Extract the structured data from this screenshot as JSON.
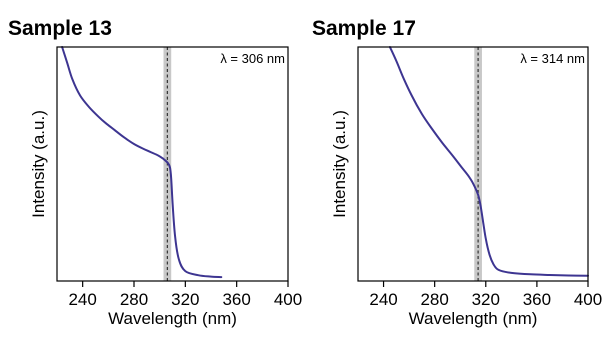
{
  "chart_data": [
    {
      "type": "line",
      "title": "Sample 13",
      "xlabel": "Wavelength (nm)",
      "ylabel": "Intensity (a.u.)",
      "xlim": [
        220,
        400
      ],
      "ylim": [
        0,
        1
      ],
      "xticks": [
        240,
        280,
        320,
        360,
        400
      ],
      "xtick_labels": [
        "240",
        "280",
        "320",
        "360",
        "400"
      ],
      "color": "#3d3591",
      "band_color": "#c8c8c8",
      "annotation": "λ = 306 nm",
      "marker_x": 306,
      "band": [
        303,
        309
      ],
      "x": [
        224,
        228,
        232,
        238,
        245,
        252,
        258,
        265,
        272,
        280,
        287,
        293,
        299,
        303,
        306,
        308,
        309,
        310,
        312,
        315,
        320,
        330,
        340,
        348
      ],
      "y": [
        1.0,
        0.93,
        0.86,
        0.79,
        0.74,
        0.7,
        0.67,
        0.64,
        0.61,
        0.58,
        0.56,
        0.545,
        0.53,
        0.515,
        0.5,
        0.48,
        0.43,
        0.33,
        0.18,
        0.08,
        0.03,
        0.012,
        0.006,
        0.004
      ]
    },
    {
      "type": "line",
      "title": "Sample 17",
      "xlabel": "Wavelength (nm)",
      "ylabel": "Intensity (a.u.)",
      "xlim": [
        220,
        400
      ],
      "ylim": [
        0,
        1
      ],
      "xticks": [
        240,
        280,
        320,
        360,
        400
      ],
      "xtick_labels": [
        "240",
        "280",
        "320",
        "360",
        "400"
      ],
      "color": "#3d3591",
      "band_color": "#c8c8c8",
      "annotation": "λ = 314 nm",
      "marker_x": 314,
      "band": [
        311,
        317
      ],
      "x": [
        245,
        250,
        256,
        262,
        270,
        278,
        286,
        294,
        301,
        306,
        310,
        314,
        316,
        318,
        320,
        323,
        326,
        330,
        340,
        355,
        370,
        385,
        400
      ],
      "y": [
        1.0,
        0.94,
        0.86,
        0.79,
        0.71,
        0.645,
        0.585,
        0.53,
        0.48,
        0.445,
        0.41,
        0.36,
        0.31,
        0.24,
        0.17,
        0.1,
        0.06,
        0.035,
        0.022,
        0.016,
        0.013,
        0.011,
        0.01
      ]
    }
  ]
}
